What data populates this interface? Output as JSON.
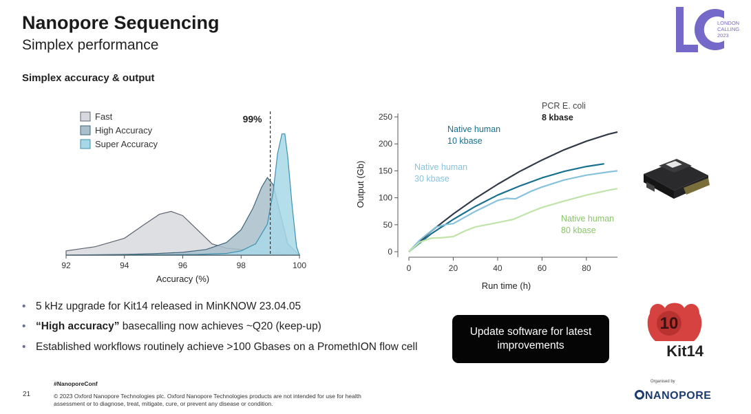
{
  "header": {
    "title": "Nanopore Sequencing",
    "subtitle": "Simplex performance",
    "section": "Simplex accuracy & output"
  },
  "logo": {
    "lc_letters": "LC",
    "lc_lines": [
      "LONDON",
      "CALLING",
      "2023"
    ]
  },
  "chart_data": [
    {
      "type": "area",
      "title": "",
      "xlabel": "Accuracy (%)",
      "ylabel": "",
      "xlim": [
        92,
        100
      ],
      "xticks": [
        92,
        94,
        96,
        98,
        100
      ],
      "annotation": "99%",
      "annotation_x": 99,
      "legend": "top-left",
      "series": [
        {
          "name": "Fast",
          "color": "#d7d9de",
          "stroke": "#5c6470",
          "x": [
            92,
            93,
            94,
            94.7,
            95.2,
            95.6,
            96,
            96.5,
            97,
            97.5,
            98,
            98.5,
            99,
            99.5,
            100
          ],
          "y": [
            0.03,
            0.06,
            0.12,
            0.22,
            0.29,
            0.31,
            0.28,
            0.18,
            0.08,
            0.05,
            0.04,
            0.03,
            0.02,
            0.01,
            0.005
          ]
        },
        {
          "name": "High Accuracy",
          "color": "#a9bfcb",
          "stroke": "#3f6478",
          "x": [
            92,
            94,
            95,
            96,
            96.8,
            97.5,
            98,
            98.4,
            98.7,
            98.9,
            99.1,
            99.3,
            99.6,
            100
          ],
          "y": [
            0.0,
            0.005,
            0.01,
            0.02,
            0.04,
            0.09,
            0.18,
            0.33,
            0.48,
            0.55,
            0.5,
            0.33,
            0.08,
            0.0
          ]
        },
        {
          "name": "Super Accuracy",
          "color": "#a8d8e8",
          "stroke": "#3f8fb0",
          "x": [
            92,
            95,
            96.5,
            97.5,
            98,
            98.5,
            98.9,
            99.1,
            99.25,
            99.4,
            99.5,
            99.6,
            99.75,
            99.9,
            100
          ],
          "y": [
            0.0,
            0.002,
            0.005,
            0.012,
            0.03,
            0.08,
            0.22,
            0.45,
            0.72,
            0.86,
            0.86,
            0.7,
            0.35,
            0.06,
            0.0
          ]
        }
      ]
    },
    {
      "type": "line",
      "title": "",
      "xlabel": "Run time (h)",
      "ylabel": "Output (Gb)",
      "xlim": [
        0,
        94
      ],
      "ylim": [
        0,
        250
      ],
      "xticks": [
        0,
        20,
        40,
        60,
        80
      ],
      "yticks": [
        0,
        50,
        100,
        150,
        200,
        250
      ],
      "series": [
        {
          "name_lines": [
            "PCR E. coli",
            "8 kbase"
          ],
          "color": "#323a48",
          "x": [
            0,
            10,
            20,
            30,
            40,
            50,
            60,
            70,
            80,
            90,
            94
          ],
          "y": [
            0,
            38,
            70,
            99,
            125,
            149,
            170,
            189,
            205,
            218,
            222
          ]
        },
        {
          "name_lines": [
            "Native human",
            "10 kbase"
          ],
          "color": "#17708f",
          "x": [
            0,
            10,
            20,
            30,
            40,
            50,
            60,
            70,
            80,
            88
          ],
          "y": [
            0,
            33,
            60,
            84,
            105,
            122,
            137,
            149,
            158,
            163
          ]
        },
        {
          "name_lines": [
            "Native human",
            "30 kbase"
          ],
          "color": "#86c2dc",
          "x": [
            0,
            5,
            12,
            16,
            20,
            30,
            40,
            44,
            48,
            55,
            60,
            70,
            80,
            90,
            94
          ],
          "y": [
            0,
            22,
            45,
            50,
            52,
            75,
            95,
            99,
            98,
            112,
            120,
            133,
            142,
            148,
            150
          ]
        },
        {
          "name_lines": [
            "Native human",
            "80 kbase"
          ],
          "color": "#bfe3a8",
          "x": [
            0,
            5,
            10,
            15,
            20,
            25,
            30,
            40,
            47,
            55,
            60,
            70,
            80,
            90,
            94
          ],
          "y": [
            0,
            18,
            25,
            26,
            28,
            38,
            46,
            54,
            60,
            74,
            82,
            94,
            105,
            114,
            117
          ]
        }
      ]
    }
  ],
  "bullets": [
    {
      "bold": "",
      "text": "5 kHz upgrade for Kit14 released in MinKNOW 23.04.05"
    },
    {
      "bold": "“High accuracy”",
      "text": " basecalling now achieves ~Q20 (keep-up)"
    },
    {
      "bold": "",
      "text": "Established workflows routinely achieve >100 Gbases on a PromethION flow cell"
    }
  ],
  "callout": {
    "line1": "Update software for latest",
    "line2": "improvements"
  },
  "kit_badge": {
    "number": "10",
    "label": "Kit14"
  },
  "footer": {
    "page_number": "21",
    "hashtag": "#NanoporeConf",
    "copyright": "© 2023 Oxford Nanopore Technologies plc. Oxford Nanopore Technologies products are not intended for use for health assessment or to diagnose, treat, mitigate, cure, or prevent any disease or condition.",
    "organised_by": "Organised by",
    "org_name": "NANOPORE"
  },
  "colors": {
    "accent": "#6f62c7",
    "badge_red": "#d6423f",
    "bullet": "#6a6f9a"
  }
}
